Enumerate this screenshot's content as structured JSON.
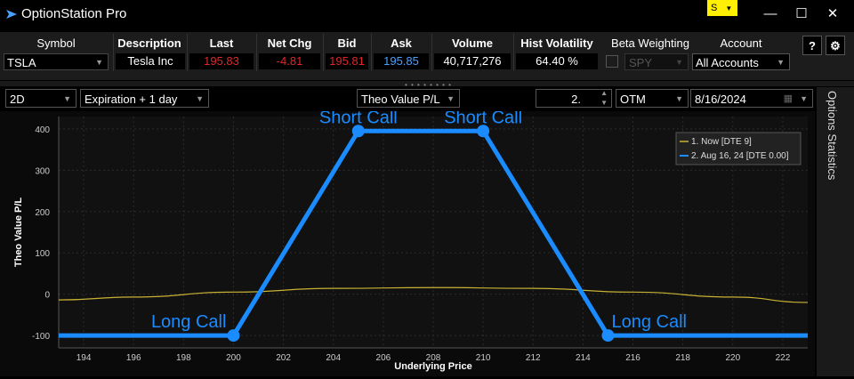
{
  "app": {
    "title": "OptionStation Pro",
    "account_badge": "S"
  },
  "window_controls": {
    "minimize": "—",
    "maximize": "☐",
    "close": "✕"
  },
  "quote": {
    "headers": {
      "symbol": "Symbol",
      "description": "Description",
      "last": "Last",
      "net_chg": "Net Chg",
      "bid": "Bid",
      "ask": "Ask",
      "volume": "Volume",
      "hist_vol": "Hist Volatility",
      "beta": "Beta Weighting",
      "account": "Account"
    },
    "symbol": "TSLA",
    "description": "Tesla Inc",
    "last": "195.83",
    "net_chg": "-4.81",
    "bid": "195.81",
    "ask": "195.85",
    "volume": "40,717,276",
    "hist_vol": "64.40 %",
    "beta_symbol": "SPY",
    "account": "All Accounts",
    "help": "?",
    "colors": {
      "down": "#e0262a",
      "ask": "#4aa0ff"
    }
  },
  "toolbar": {
    "view": "2D",
    "time_mode": "Expiration + 1 day",
    "measure": "Theo Value P/L",
    "count": "2.",
    "moneyness": "OTM",
    "date": "8/16/2024"
  },
  "side_panel": {
    "label": "Options Statistics"
  },
  "chart_data": {
    "type": "line",
    "xlabel": "Underlying Price",
    "ylabel": "Theo Value P/L",
    "xlim": [
      193,
      223
    ],
    "ylim": [
      -130,
      430
    ],
    "x_ticks": [
      194,
      196,
      198,
      200,
      202,
      204,
      206,
      208,
      210,
      212,
      214,
      216,
      218,
      220,
      222
    ],
    "y_ticks": [
      -100,
      0,
      100,
      200,
      300,
      400
    ],
    "grid": true,
    "legend_position": "top-right",
    "series": [
      {
        "name": "1. Now [DTE 9]",
        "color": "#c8b234",
        "x": [
          193,
          196,
          200,
          204,
          208,
          212,
          216,
          220,
          223
        ],
        "y": [
          -14,
          -7,
          5,
          14,
          16,
          14,
          5,
          -7,
          -20
        ]
      },
      {
        "name": "2. Aug 16, 24 [DTE 0.00]",
        "color": "#1a8cff",
        "x": [
          193,
          200,
          205,
          210,
          215,
          223
        ],
        "y": [
          -100,
          -100,
          395,
          395,
          -100,
          -100
        ]
      }
    ],
    "annotations": [
      {
        "text": "Long Call",
        "x": 200,
        "y": -100
      },
      {
        "text": "Short Call",
        "x": 205,
        "y": 395
      },
      {
        "text": "Short Call",
        "x": 210,
        "y": 395
      },
      {
        "text": "Long Call",
        "x": 215,
        "y": -100
      }
    ]
  }
}
